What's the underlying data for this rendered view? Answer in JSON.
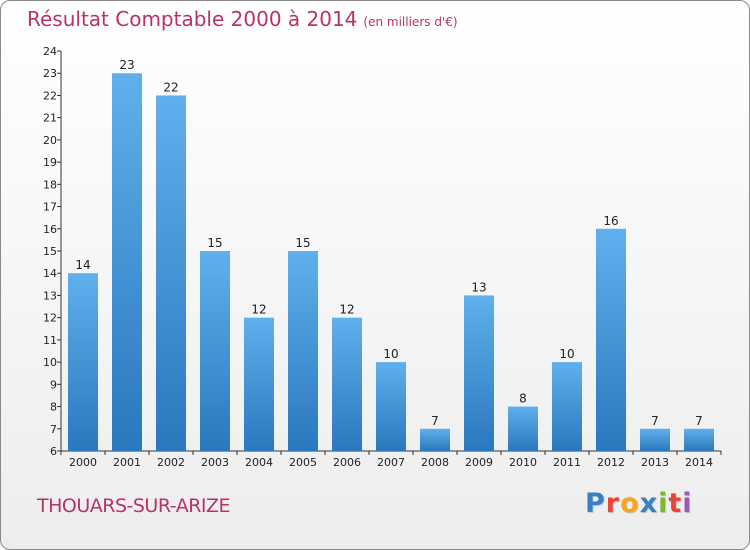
{
  "title": "Résultat Comptable 2000 à 2014",
  "subtitle": "(en milliers d'€)",
  "commune": "THOUARS-SUR-ARIZE",
  "logo": {
    "text": "Proxiti",
    "colors": [
      "#3a7ec5",
      "#e8453c",
      "#f5a623",
      "#3a7ec5",
      "#7cb82f",
      "#e8453c",
      "#9b59b6"
    ]
  },
  "colors": {
    "bar": "#5aa9e6",
    "bar_dark": "#2a78bd",
    "title": "#b8326a"
  },
  "chart_data": {
    "type": "bar",
    "title": "Résultat Comptable 2000 à 2014",
    "subtitle": "(en milliers d'€)",
    "categories": [
      "2000",
      "2001",
      "2002",
      "2003",
      "2004",
      "2005",
      "2006",
      "2007",
      "2008",
      "2009",
      "2010",
      "2011",
      "2012",
      "2013",
      "2014"
    ],
    "values": [
      14,
      23,
      22,
      15,
      12,
      15,
      12,
      10,
      7,
      13,
      8,
      10,
      16,
      7,
      7
    ],
    "ylim": [
      6,
      24
    ],
    "yticks": [
      6,
      7,
      8,
      9,
      10,
      11,
      12,
      13,
      14,
      15,
      16,
      17,
      18,
      19,
      20,
      21,
      22,
      23,
      24
    ],
    "grid": false,
    "legend": "none"
  }
}
